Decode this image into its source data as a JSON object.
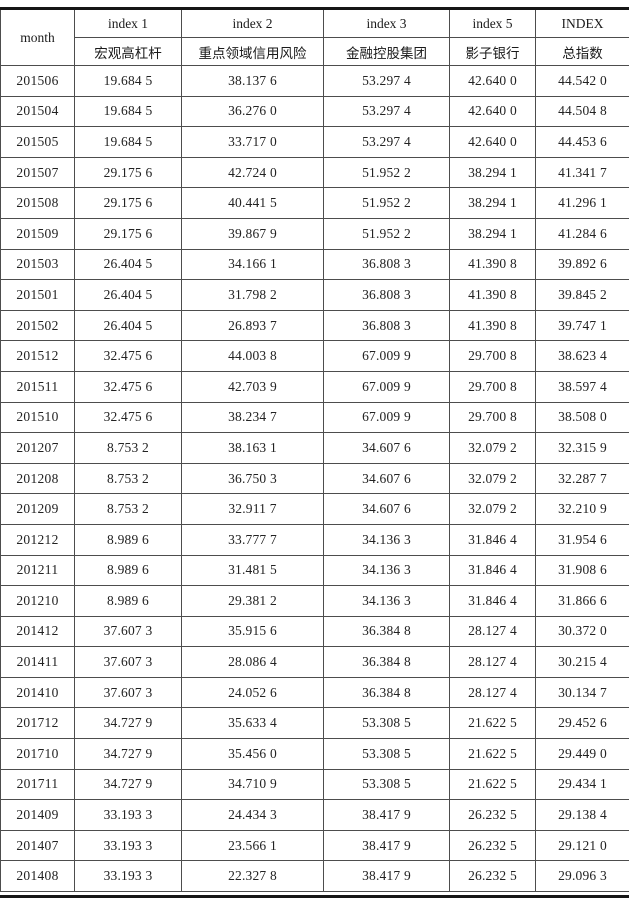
{
  "table": {
    "header": {
      "month_label": "month",
      "columns": [
        {
          "en": "index 1",
          "zh": "宏观高杠杆"
        },
        {
          "en": "index 2",
          "zh": "重点领域信用风险"
        },
        {
          "en": "index 3",
          "zh": "金融控股集团"
        },
        {
          "en": "index 5",
          "zh": "影子银行"
        },
        {
          "en": "INDEX",
          "zh": "总指数"
        }
      ]
    },
    "rows": [
      [
        "201506",
        "19.684 5",
        "38.137 6",
        "53.297 4",
        "42.640 0",
        "44.542 0"
      ],
      [
        "201504",
        "19.684 5",
        "36.276 0",
        "53.297 4",
        "42.640 0",
        "44.504 8"
      ],
      [
        "201505",
        "19.684 5",
        "33.717 0",
        "53.297 4",
        "42.640 0",
        "44.453 6"
      ],
      [
        "201507",
        "29.175 6",
        "42.724 0",
        "51.952 2",
        "38.294 1",
        "41.341 7"
      ],
      [
        "201508",
        "29.175 6",
        "40.441 5",
        "51.952 2",
        "38.294 1",
        "41.296 1"
      ],
      [
        "201509",
        "29.175 6",
        "39.867 9",
        "51.952 2",
        "38.294 1",
        "41.284 6"
      ],
      [
        "201503",
        "26.404 5",
        "34.166 1",
        "36.808 3",
        "41.390 8",
        "39.892 6"
      ],
      [
        "201501",
        "26.404 5",
        "31.798 2",
        "36.808 3",
        "41.390 8",
        "39.845 2"
      ],
      [
        "201502",
        "26.404 5",
        "26.893 7",
        "36.808 3",
        "41.390 8",
        "39.747 1"
      ],
      [
        "201512",
        "32.475 6",
        "44.003 8",
        "67.009 9",
        "29.700 8",
        "38.623 4"
      ],
      [
        "201511",
        "32.475 6",
        "42.703 9",
        "67.009 9",
        "29.700 8",
        "38.597 4"
      ],
      [
        "201510",
        "32.475 6",
        "38.234 7",
        "67.009 9",
        "29.700 8",
        "38.508 0"
      ],
      [
        "201207",
        "8.753 2",
        "38.163 1",
        "34.607 6",
        "32.079 2",
        "32.315 9"
      ],
      [
        "201208",
        "8.753 2",
        "36.750 3",
        "34.607 6",
        "32.079 2",
        "32.287 7"
      ],
      [
        "201209",
        "8.753 2",
        "32.911 7",
        "34.607 6",
        "32.079 2",
        "32.210 9"
      ],
      [
        "201212",
        "8.989 6",
        "33.777 7",
        "34.136 3",
        "31.846 4",
        "31.954 6"
      ],
      [
        "201211",
        "8.989 6",
        "31.481 5",
        "34.136 3",
        "31.846 4",
        "31.908 6"
      ],
      [
        "201210",
        "8.989 6",
        "29.381 2",
        "34.136 3",
        "31.846 4",
        "31.866 6"
      ],
      [
        "201412",
        "37.607 3",
        "35.915 6",
        "36.384 8",
        "28.127 4",
        "30.372 0"
      ],
      [
        "201411",
        "37.607 3",
        "28.086 4",
        "36.384 8",
        "28.127 4",
        "30.215 4"
      ],
      [
        "201410",
        "37.607 3",
        "24.052 6",
        "36.384 8",
        "28.127 4",
        "30.134 7"
      ],
      [
        "201712",
        "34.727 9",
        "35.633 4",
        "53.308 5",
        "21.622 5",
        "29.452 6"
      ],
      [
        "201710",
        "34.727 9",
        "35.456 0",
        "53.308 5",
        "21.622 5",
        "29.449 0"
      ],
      [
        "201711",
        "34.727 9",
        "34.710 9",
        "53.308 5",
        "21.622 5",
        "29.434 1"
      ],
      [
        "201409",
        "33.193 3",
        "24.434 3",
        "38.417 9",
        "26.232 5",
        "29.138 4"
      ],
      [
        "201407",
        "33.193 3",
        "23.566 1",
        "38.417 9",
        "26.232 5",
        "29.121 0"
      ],
      [
        "201408",
        "33.193 3",
        "22.327 8",
        "38.417 9",
        "26.232 5",
        "29.096 3"
      ]
    ]
  }
}
